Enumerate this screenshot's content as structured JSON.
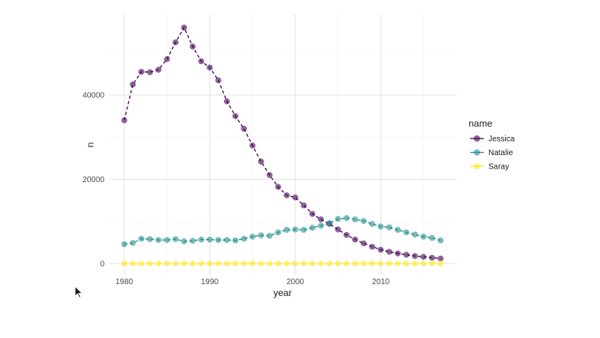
{
  "chart_data": {
    "type": "line",
    "title": "",
    "xlabel": "year",
    "ylabel": "n",
    "xlim": [
      1979,
      2018
    ],
    "ylim": [
      -2500,
      60000
    ],
    "x_ticks": [
      1980,
      1990,
      2000,
      2010
    ],
    "y_ticks": [
      0,
      20000,
      40000
    ],
    "x_tick_labels": [
      "1980",
      "1990",
      "2000",
      "2010"
    ],
    "y_tick_labels": [
      "0",
      "20000",
      "40000"
    ],
    "grid": true,
    "legend": {
      "title": "name",
      "position": "right"
    },
    "x": [
      1980,
      1981,
      1982,
      1983,
      1984,
      1985,
      1986,
      1987,
      1988,
      1989,
      1990,
      1991,
      1992,
      1993,
      1994,
      1995,
      1996,
      1997,
      1998,
      1999,
      2000,
      2001,
      2002,
      2003,
      2004,
      2005,
      2006,
      2007,
      2008,
      2009,
      2010,
      2011,
      2012,
      2013,
      2014,
      2015,
      2016,
      2017
    ],
    "series": [
      {
        "name": "Jessica",
        "color": "#440154",
        "values": [
          34000,
          42500,
          45500,
          45400,
          46000,
          48500,
          52500,
          56000,
          51500,
          48000,
          46500,
          43500,
          38500,
          35000,
          32000,
          28000,
          24200,
          21000,
          18200,
          16200,
          15700,
          13800,
          11800,
          10500,
          9400,
          8100,
          6800,
          5700,
          4800,
          4000,
          3300,
          2800,
          2400,
          2100,
          1800,
          1600,
          1400,
          1200
        ]
      },
      {
        "name": "Natalie",
        "color": "#21908C",
        "values": [
          4600,
          4900,
          5900,
          5800,
          5600,
          5600,
          5800,
          5300,
          5400,
          5700,
          5700,
          5600,
          5600,
          5500,
          5900,
          6400,
          6700,
          6600,
          7400,
          8000,
          8100,
          8000,
          8500,
          9000,
          9600,
          10600,
          10800,
          10500,
          10100,
          9400,
          8800,
          8600,
          8000,
          7400,
          6900,
          6400,
          6100,
          5500
        ]
      },
      {
        "name": "Saray",
        "color": "#FDE725",
        "values": [
          0,
          0,
          0,
          0,
          0,
          0,
          0,
          0,
          0,
          0,
          0,
          0,
          0,
          0,
          0,
          0,
          0,
          0,
          0,
          0,
          0,
          0,
          0,
          0,
          0,
          0,
          0,
          0,
          0,
          0,
          0,
          0,
          0,
          0,
          0,
          0,
          0,
          0
        ]
      }
    ]
  }
}
